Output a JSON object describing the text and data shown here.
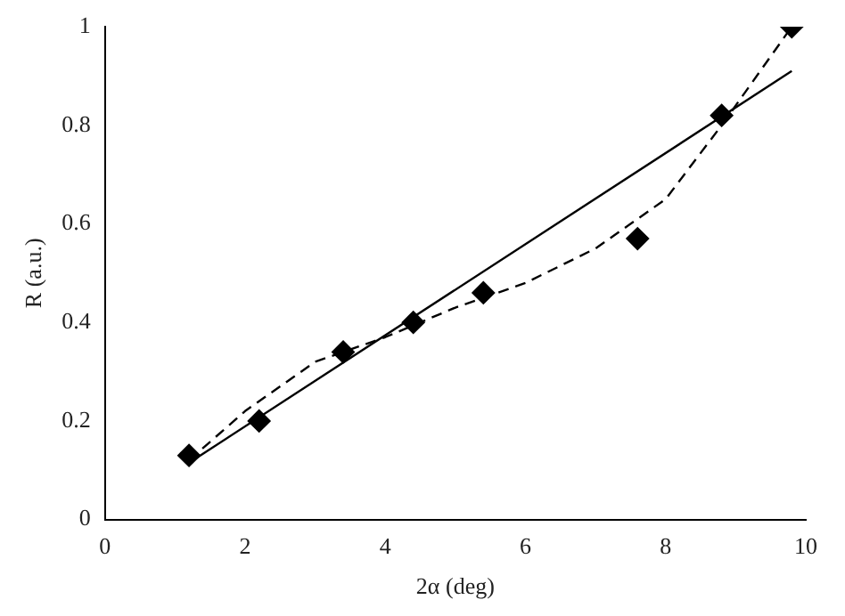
{
  "chart_data": {
    "type": "scatter",
    "xlabel": "2α (deg)",
    "ylabel": "R (a.u.)",
    "xlim": [
      0,
      10
    ],
    "ylim": [
      0,
      1
    ],
    "xticks": [
      0,
      2,
      4,
      6,
      8,
      10
    ],
    "yticks": [
      0,
      0.2,
      0.4,
      0.6,
      0.8,
      1
    ],
    "grid": false,
    "legend": false,
    "series": [
      {
        "color": "#000000",
        "marker": "diamond",
        "x": [
          1.2,
          2.2,
          3.4,
          4.4,
          5.4,
          7.6,
          8.8,
          9.8
        ],
        "values": [
          0.13,
          0.2,
          0.34,
          0.4,
          0.46,
          0.57,
          0.82,
          1.0
        ]
      },
      {
        "type": "line",
        "color": "#000000",
        "marker": "none",
        "line_style": "solid",
        "x": [
          1.2,
          9.8
        ],
        "values": [
          0.115,
          0.91
        ]
      },
      {
        "type": "line",
        "color": "#000000",
        "marker": "none",
        "line_style": "dashed",
        "x": [
          1.2,
          2,
          3,
          4,
          5,
          6,
          7,
          8,
          8.8,
          9.8
        ],
        "values": [
          0.12,
          0.22,
          0.32,
          0.37,
          0.43,
          0.48,
          0.55,
          0.65,
          0.8,
          1.0
        ]
      }
    ]
  }
}
